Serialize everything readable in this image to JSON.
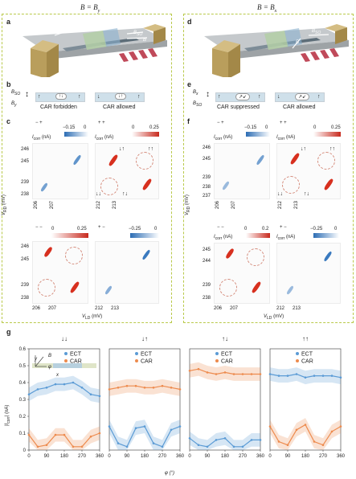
{
  "titles": {
    "left": "B = B",
    "left_sub": "y",
    "right": "B = B",
    "right_sub": "x"
  },
  "panels": {
    "a": "a",
    "b": "b",
    "c": "c",
    "d": "d",
    "e": "e",
    "f": "f",
    "g": "g"
  },
  "panel_a": {
    "x": "x",
    "y": "y",
    "z": "z",
    "B": "B",
    "Bso": "B",
    "Bso_sub": "SO"
  },
  "panel_d": {
    "B": "B",
    "Bso": "B",
    "Bso_sub": "SO",
    "x": "x",
    "y": "y",
    "z": "z"
  },
  "panel_b": {
    "Bso": "B",
    "Bso_sub": "SO",
    "By": "B",
    "By_sub": "y",
    "label_left": "CAR forbidden",
    "label_right": "CAR allowed"
  },
  "panel_e": {
    "Bx": "B",
    "Bx_sub": "x",
    "Bso": "B",
    "Bso_sub": "SO",
    "label_left": "CAR suppressed",
    "label_right": "CAR allowed"
  },
  "panel_c": {
    "tl": {
      "sign": "− +",
      "cbar_label": "I",
      "cbar_sub": "corr",
      "cbar_unit": "(nA)",
      "cbar_min": "−0.15",
      "cbar_max": "0"
    },
    "tr": {
      "sign": "+ +",
      "cbar_label": "I",
      "cbar_sub": "corr",
      "cbar_unit": "(nA)",
      "cbar_min": "0",
      "cbar_max": "0.25",
      "spin_a": "↓↑",
      "spin_b": "↑↑",
      "spin_c": "↓↓",
      "spin_d": "↑↓"
    },
    "bl": {
      "cbar_min": "0",
      "cbar_max": "0.25",
      "sign": "− −"
    },
    "br": {
      "sign": "+ −",
      "cbar_min": "−0.25",
      "cbar_max": "0"
    },
    "ylabel": "V",
    "ylabel_sub": "RD",
    "ylabel_unit": "(mV)",
    "xlabel": "V",
    "xlabel_sub": "LD",
    "xlabel_unit": "(mV)",
    "yticks_top": [
      "246",
      "245",
      "239",
      "238"
    ],
    "yticks_bottom": [
      "246",
      "245",
      "239",
      "238"
    ],
    "xticks": [
      "206",
      "207",
      "212",
      "213"
    ]
  },
  "panel_f": {
    "tl": {
      "sign": "− +",
      "cbar_label": "I",
      "cbar_sub": "corr",
      "cbar_unit": "(nA)",
      "cbar_min": "−0.15",
      "cbar_max": "0"
    },
    "tr": {
      "sign": "+ +",
      "cbar_label": "I",
      "cbar_sub": "corr",
      "cbar_unit": "(nA)",
      "cbar_min": "0",
      "cbar_max": "0.25",
      "spin_a": "↓↑",
      "spin_b": "↑↑",
      "spin_c": "↓↓",
      "spin_d": "↑↓"
    },
    "bl": {
      "sign": "− −",
      "cbar_min": "0",
      "cbar_max": "0.2"
    },
    "br": {
      "sign": "+ −",
      "cbar_min": "−0.25",
      "cbar_max": "0"
    },
    "ylabel": "V",
    "ylabel_sub": "RD",
    "ylabel_unit": "(mV)",
    "xlabel": "V",
    "xlabel_sub": "LD",
    "xlabel_unit": "(mV)",
    "yticks_top": [
      "246",
      "245",
      "239",
      "238",
      "237"
    ],
    "yticks_bottom": [
      "245",
      "244",
      "239",
      "238"
    ],
    "xticks": [
      "206",
      "207",
      "212",
      "213"
    ]
  },
  "panel_g": {
    "inset": {
      "y": "y",
      "B": "B",
      "phi": "φ",
      "x": "x"
    },
    "ylabel": "|I",
    "ylabel_sub": "corr",
    "ylabel_unit": "| (nA)",
    "xlabel": "φ (°)",
    "legend": [
      "ECT",
      "CAR"
    ],
    "yticks": [
      "0",
      "0.1",
      "0.2",
      "0.3",
      "0.4",
      "0.5",
      "0.6"
    ],
    "xticks": [
      "0",
      "90",
      "180",
      "270",
      "360"
    ]
  },
  "colors": {
    "ect": "#5b9bd5",
    "car": "#ed8b4e",
    "box": "#b9c94a"
  },
  "chart_data": [
    {
      "type": "line",
      "title": "↓↓",
      "x": [
        0,
        45,
        90,
        135,
        180,
        225,
        270,
        315,
        360
      ],
      "series": [
        {
          "name": "ECT",
          "values": [
            0.33,
            0.36,
            0.37,
            0.39,
            0.39,
            0.4,
            0.37,
            0.33,
            0.32
          ]
        },
        {
          "name": "CAR",
          "values": [
            0.09,
            0.02,
            0.03,
            0.09,
            0.09,
            0.02,
            0.02,
            0.08,
            0.1
          ]
        }
      ],
      "ylim": [
        0,
        0.6
      ],
      "xlim": [
        0,
        360
      ]
    },
    {
      "type": "line",
      "title": "↓↑",
      "x": [
        0,
        45,
        90,
        135,
        180,
        225,
        270,
        315,
        360
      ],
      "series": [
        {
          "name": "ECT",
          "values": [
            0.14,
            0.04,
            0.02,
            0.13,
            0.14,
            0.04,
            0.02,
            0.12,
            0.14
          ]
        },
        {
          "name": "CAR",
          "values": [
            0.36,
            0.37,
            0.38,
            0.38,
            0.37,
            0.37,
            0.38,
            0.37,
            0.36
          ]
        }
      ],
      "ylim": [
        0,
        0.6
      ],
      "xlim": [
        0,
        360
      ]
    },
    {
      "type": "line",
      "title": "↑↓",
      "x": [
        0,
        45,
        90,
        135,
        180,
        225,
        270,
        315,
        360
      ],
      "series": [
        {
          "name": "ECT",
          "values": [
            0.07,
            0.03,
            0.02,
            0.06,
            0.07,
            0.02,
            0.02,
            0.06,
            0.06
          ]
        },
        {
          "name": "CAR",
          "values": [
            0.47,
            0.48,
            0.46,
            0.45,
            0.46,
            0.45,
            0.45,
            0.45,
            0.45
          ]
        }
      ],
      "ylim": [
        0,
        0.6
      ],
      "xlim": [
        0,
        360
      ]
    },
    {
      "type": "line",
      "title": "↑↑",
      "x": [
        0,
        45,
        90,
        135,
        180,
        225,
        270,
        315,
        360
      ],
      "series": [
        {
          "name": "ECT",
          "values": [
            0.45,
            0.44,
            0.44,
            0.45,
            0.43,
            0.44,
            0.44,
            0.44,
            0.43
          ]
        },
        {
          "name": "CAR",
          "values": [
            0.14,
            0.05,
            0.03,
            0.12,
            0.15,
            0.05,
            0.03,
            0.11,
            0.14
          ]
        }
      ],
      "ylim": [
        0,
        0.6
      ],
      "xlim": [
        0,
        360
      ]
    }
  ]
}
